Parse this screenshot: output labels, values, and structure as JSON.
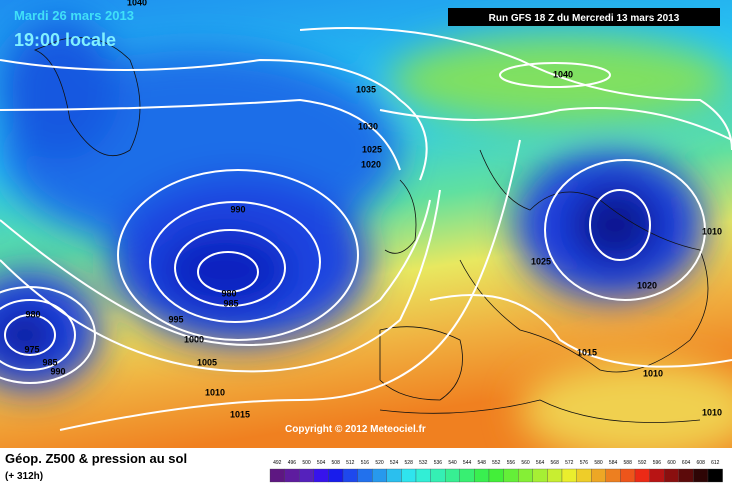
{
  "header": {
    "date": "Mardi 26 mars 2013",
    "time": "19:00 locale",
    "run": "Run GFS 18 Z du Mercredi 13 mars 2013"
  },
  "isobars": [
    1040,
    1035,
    1030,
    1025,
    1020,
    990,
    980,
    985,
    995,
    1000,
    1005,
    1010,
    1015,
    980,
    975,
    985,
    990,
    1040,
    1025,
    1020,
    1015,
    1010,
    1010,
    1010
  ],
  "copyright": "Copyright © 2012 Meteociel.fr",
  "footer": {
    "title": "Géop. Z500 & pression au sol",
    "lead": "(+ 312h)"
  },
  "legend": {
    "levels": [
      492,
      496,
      500,
      504,
      508,
      512,
      516,
      520,
      524,
      528,
      532,
      536,
      540,
      544,
      548,
      552,
      556,
      560,
      564,
      568,
      572,
      576,
      580,
      584,
      588,
      592,
      596,
      600,
      604,
      608,
      612
    ]
  }
}
